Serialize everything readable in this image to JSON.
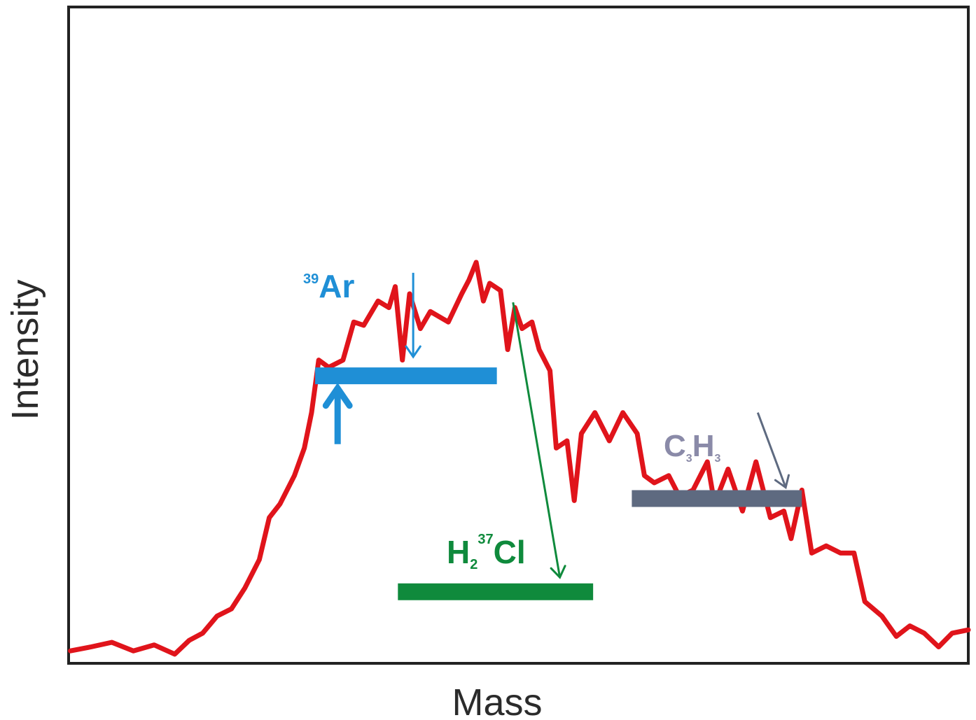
{
  "chart_data": {
    "type": "line",
    "title": "",
    "xlabel": "Mass",
    "ylabel": "Intensity",
    "xlim": [
      0,
      100
    ],
    "ylim": [
      0,
      100
    ],
    "grid": false,
    "ticks": false,
    "series": [
      {
        "color": "#e0141b",
        "x": [
          0.2,
          2.5,
          4.8,
          7.2,
          9.5,
          11.8,
          13.4,
          14.9,
          16.5,
          18.1,
          19.6,
          21.2,
          22.3,
          23.5,
          25.1,
          26.2,
          27.0,
          27.8,
          28.9,
          30.5,
          31.7,
          32.8,
          34.4,
          35.6,
          36.3,
          37.1,
          37.9,
          39.1,
          40.2,
          42.2,
          43.7,
          44.5,
          45.3,
          46.1,
          46.8,
          48.0,
          48.8,
          49.6,
          50.4,
          51.5,
          52.3,
          53.5,
          54.2,
          55.4,
          56.2,
          57.0,
          58.5,
          60.1,
          61.6,
          63.2,
          64.0,
          65.1,
          66.7,
          67.9,
          69.4,
          71.0,
          71.8,
          73.3,
          74.9,
          76.4,
          78.0,
          79.5,
          80.3,
          81.5,
          82.6,
          84.2,
          85.8,
          87.3,
          88.5,
          90.4,
          92.0,
          93.5,
          95.1,
          96.7,
          98.2,
          100
        ],
        "y": [
          1.9,
          2.5,
          3.2,
          1.9,
          2.8,
          1.4,
          3.5,
          4.6,
          7.2,
          8.3,
          11.5,
          15.8,
          22.2,
          24.3,
          28.6,
          32.8,
          38.2,
          46.2,
          45.1,
          46.2,
          52.0,
          51.5,
          55.2,
          54.2,
          57.4,
          46.2,
          56.3,
          51.0,
          53.6,
          52.0,
          56.3,
          58.4,
          61.1,
          55.2,
          57.9,
          56.8,
          47.8,
          54.2,
          51.0,
          52.0,
          47.8,
          44.6,
          32.8,
          33.9,
          24.8,
          35.0,
          38.2,
          33.9,
          38.2,
          35.0,
          28.6,
          27.5,
          28.6,
          25.4,
          26.4,
          30.7,
          24.3,
          29.6,
          23.2,
          30.7,
          22.2,
          23.2,
          19.0,
          26.4,
          16.8,
          17.9,
          16.8,
          16.8,
          9.4,
          7.2,
          4.1,
          5.7,
          4.6,
          2.5,
          4.6,
          5.1
        ]
      }
    ],
    "annotations": [
      {
        "label_mass": "39",
        "label_main": "Ar",
        "color": "#1f8fd6",
        "bar": {
          "x0": 27.4,
          "x1": 47.6,
          "y": 43.8
        },
        "arrows": [
          {
            "from": [
              29.9,
              33.4
            ],
            "to": [
              29.9,
              41.9
            ]
          },
          {
            "from": [
              38.3,
              59.5
            ],
            "to": [
              38.3,
              46.7
            ]
          }
        ]
      },
      {
        "label_main": "H",
        "label_sub": "2",
        "label_mass": "37",
        "label_tail": "Cl",
        "color": "#0f8a3c",
        "bar": {
          "x0": 36.6,
          "x1": 58.3,
          "y": 10.9
        },
        "arrows": [
          {
            "from": [
              49.4,
              55.0
            ],
            "to": [
              54.6,
              13.1
            ]
          }
        ]
      },
      {
        "label_main": "C",
        "label_sub": "3",
        "label_main2": "H",
        "label_sub2": "3",
        "color": "#5e6a80",
        "label_color": "#8a8aa8",
        "bar": {
          "x0": 62.6,
          "x1": 81.5,
          "y": 25.1
        },
        "arrows": [
          {
            "from": [
              76.6,
              38.2
            ],
            "to": [
              79.7,
              26.8
            ]
          }
        ]
      }
    ]
  }
}
